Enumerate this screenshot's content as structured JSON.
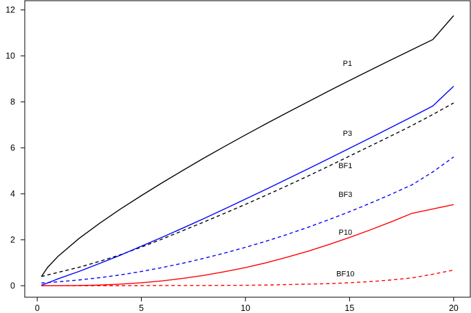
{
  "chart_data": {
    "type": "line",
    "title": "",
    "xlabel": "",
    "ylabel": "",
    "xlim": [
      -0.6,
      20.8
    ],
    "ylim": [
      -0.5,
      12.4
    ],
    "x_ticks": [
      0,
      5,
      10,
      15,
      20
    ],
    "y_ticks": [
      0,
      2,
      4,
      6,
      8,
      10,
      12
    ],
    "grid": false,
    "legend": "none",
    "series": [
      {
        "name": "P1",
        "color": "#000000",
        "dash": "solid",
        "x": [
          0.2,
          0.5,
          1,
          2,
          3,
          4,
          5,
          6,
          7,
          8,
          9,
          10,
          11,
          12,
          13,
          14,
          15,
          16,
          17,
          18,
          19,
          20
        ],
        "y": [
          0.4,
          0.8,
          1.28,
          2.05,
          2.72,
          3.34,
          3.92,
          4.48,
          5.02,
          5.55,
          6.06,
          6.56,
          7.05,
          7.53,
          8.0,
          8.47,
          8.93,
          9.38,
          9.83,
          10.27,
          10.71,
          11.75
        ],
        "label": {
          "text": "P1",
          "x": 14.9,
          "y": 9.65
        }
      },
      {
        "name": "BF1",
        "color": "#000000",
        "dash": "dashed",
        "x": [
          0.2,
          1,
          2,
          3,
          4,
          5,
          6,
          7,
          8,
          9,
          10,
          11,
          12,
          13,
          14,
          15,
          16,
          17,
          18,
          19,
          20
        ],
        "y": [
          0.4,
          0.58,
          0.8,
          1.06,
          1.35,
          1.68,
          2.03,
          2.4,
          2.77,
          3.15,
          3.54,
          3.94,
          4.35,
          4.77,
          5.2,
          5.64,
          6.08,
          6.52,
          6.97,
          7.45,
          7.95
        ],
        "label": {
          "text": "BF1",
          "x": 14.8,
          "y": 5.2
        }
      },
      {
        "name": "P3",
        "color": "#0000ff",
        "dash": "solid",
        "x": [
          0.2,
          0.5,
          1,
          2,
          3,
          4,
          5,
          6,
          7,
          8,
          9,
          10,
          11,
          12,
          13,
          14,
          15,
          16,
          17,
          18,
          19,
          20
        ],
        "y": [
          0.02,
          0.12,
          0.3,
          0.62,
          0.97,
          1.33,
          1.72,
          2.11,
          2.51,
          2.92,
          3.34,
          3.77,
          4.2,
          4.64,
          5.08,
          5.53,
          5.98,
          6.43,
          6.89,
          7.35,
          7.82,
          8.68
        ],
        "label": {
          "text": "P3",
          "x": 14.9,
          "y": 6.6
        }
      },
      {
        "name": "BF3",
        "color": "#0000ff",
        "dash": "dashed",
        "x": [
          0.2,
          1,
          2,
          3,
          4,
          5,
          6,
          7,
          8,
          9,
          10,
          11,
          12,
          13,
          14,
          15,
          16,
          17,
          18,
          19,
          20
        ],
        "y": [
          0.12,
          0.17,
          0.25,
          0.35,
          0.47,
          0.62,
          0.79,
          0.98,
          1.19,
          1.42,
          1.67,
          1.94,
          2.23,
          2.54,
          2.87,
          3.22,
          3.59,
          3.98,
          4.39,
          4.95,
          5.6
        ],
        "label": {
          "text": "BF3",
          "x": 14.8,
          "y": 3.95
        }
      },
      {
        "name": "P10",
        "color": "#ff0000",
        "dash": "solid",
        "x": [
          0.2,
          1,
          2,
          3,
          4,
          5,
          6,
          7,
          8,
          9,
          10,
          11,
          12,
          13,
          14,
          15,
          16,
          17,
          18,
          19,
          20
        ],
        "y": [
          0.0,
          0.0,
          0.01,
          0.03,
          0.07,
          0.13,
          0.21,
          0.32,
          0.45,
          0.61,
          0.79,
          1.0,
          1.24,
          1.5,
          1.79,
          2.1,
          2.43,
          2.78,
          3.15,
          3.34,
          3.53
        ],
        "label": {
          "text": "P10",
          "x": 14.8,
          "y": 2.3
        }
      },
      {
        "name": "BF10",
        "color": "#ff0000",
        "dash": "dashed",
        "x": [
          0.2,
          2,
          4,
          6,
          8,
          10,
          11,
          12,
          13,
          14,
          15,
          16,
          17,
          18,
          19,
          20
        ],
        "y": [
          0.0,
          0.0,
          0.0,
          0.01,
          0.01,
          0.02,
          0.03,
          0.05,
          0.07,
          0.09,
          0.13,
          0.18,
          0.25,
          0.34,
          0.5,
          0.68
        ],
        "label": {
          "text": "BF10",
          "x": 14.8,
          "y": 0.5
        }
      }
    ]
  }
}
